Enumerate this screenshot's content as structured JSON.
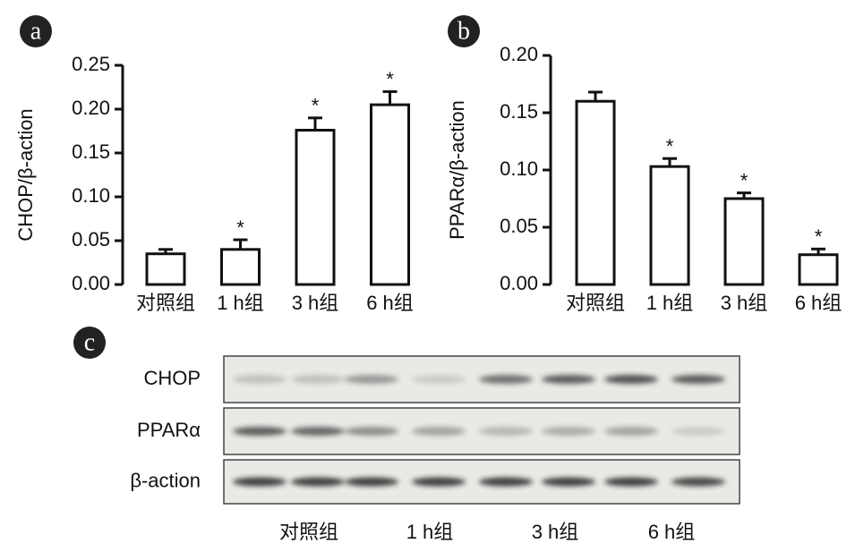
{
  "chart_data": [
    {
      "type": "bar",
      "panel": "a",
      "ylabel": "CHOP/β-action",
      "categories": [
        "对照组",
        "1 h组",
        "3 h组",
        "6 h组"
      ],
      "values": [
        0.035,
        0.04,
        0.176,
        0.205
      ],
      "errors": [
        0.005,
        0.011,
        0.014,
        0.015
      ],
      "markers": [
        null,
        "*",
        "*",
        "*"
      ],
      "color": "#ffffff",
      "ylim": [
        0,
        0.25
      ],
      "yticks": [
        {
          "value": 0,
          "label": "0.00"
        },
        0.05,
        {
          "value": 0.1,
          "label": "0.10"
        },
        0.15,
        {
          "value": 0.2,
          "label": "0.20"
        },
        0.25
      ]
    },
    {
      "type": "bar",
      "panel": "b",
      "ylabel": "PPARα/β-action",
      "categories": [
        "对照组",
        "1 h组",
        "3 h组",
        "6 h组"
      ],
      "values": [
        0.16,
        0.103,
        0.075,
        0.026
      ],
      "errors": [
        0.008,
        0.007,
        0.005,
        0.005
      ],
      "markers": [
        null,
        "*",
        "*",
        "*"
      ],
      "color": "#ffffff",
      "ylim": [
        0,
        0.2
      ],
      "yticks": [
        {
          "value": 0,
          "label": "0.00"
        },
        0.05,
        {
          "value": 0.1,
          "label": "0.10"
        },
        0.15,
        {
          "value": 0.2,
          "label": "0.20"
        }
      ]
    }
  ],
  "blot": {
    "panel": "c",
    "rows": [
      "CHOP",
      "PPARα",
      "β-action"
    ],
    "lanes": [
      "对照组",
      "1 h组",
      "3 h组",
      "6 h组"
    ]
  }
}
